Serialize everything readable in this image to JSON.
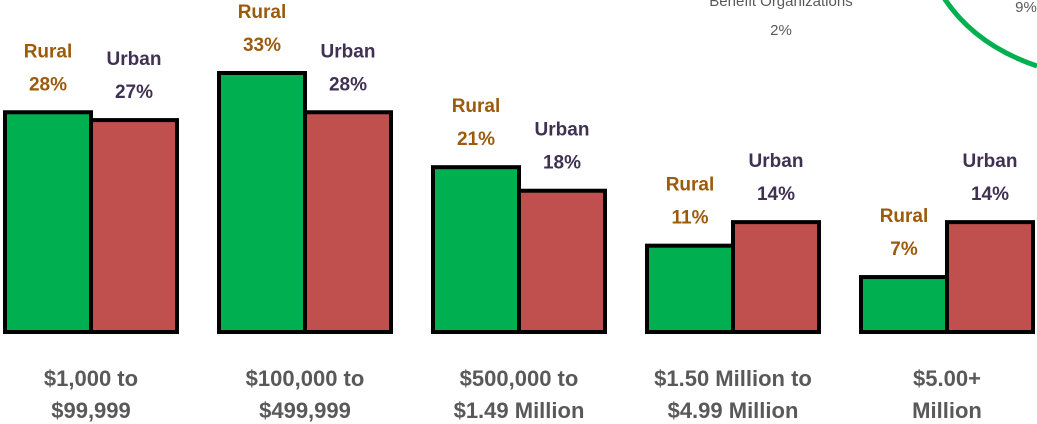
{
  "chart_data": {
    "type": "bar",
    "categories": [
      [
        "$1,000 to",
        "$99,999"
      ],
      [
        "$100,000 to",
        "$499,999"
      ],
      [
        "$500,000 to",
        "$1.49 Million"
      ],
      [
        "$1.50 Million to",
        "$4.99 Million"
      ],
      [
        "$5.00+",
        "Million"
      ]
    ],
    "series": [
      {
        "name": "Rural",
        "color": "#00b050",
        "label_color": "#9c5a0c",
        "values": [
          28,
          33,
          21,
          11,
          7
        ],
        "value_labels": [
          "28%",
          "33%",
          "21%",
          "11%",
          "7%"
        ]
      },
      {
        "name": "Urban",
        "color": "#c0504d",
        "label_color": "#403152",
        "values": [
          27,
          28,
          18,
          14,
          14
        ],
        "value_labels": [
          "27%",
          "28%",
          "18%",
          "14%",
          "14%"
        ]
      }
    ],
    "annotations": [
      "Benefit Organizations",
      "2%",
      "9%"
    ]
  }
}
